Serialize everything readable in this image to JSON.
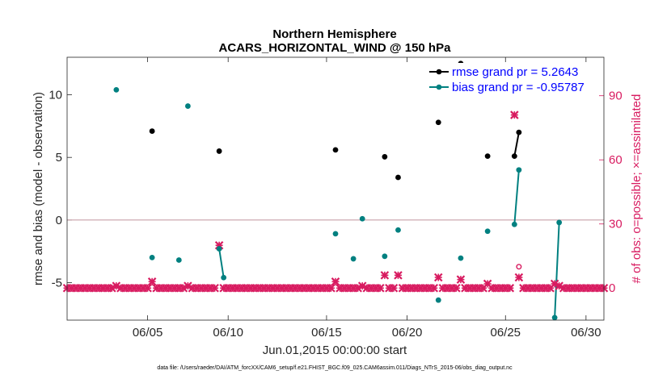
{
  "chart_data": {
    "type": "scatter",
    "title_line1": "Northern Hemisphere",
    "title_line2": "ACARS_HORIZONTAL_WIND @ 150 hPa",
    "xlabel": "Jun.01,2015 00:00:00 start",
    "ylabel_left": "rmse and bias (model - observation)",
    "ylabel_right": "# of obs: o=possible; ×=assimilated",
    "xlim": [
      1,
      31
    ],
    "ylim_left": [
      -8,
      13
    ],
    "ylim_right": [
      -15,
      108
    ],
    "x_ticks": [
      {
        "value": 5.5,
        "label": "06/05"
      },
      {
        "value": 10,
        "label": "06/10"
      },
      {
        "value": 15.5,
        "label": "06/15"
      },
      {
        "value": 20,
        "label": "06/20"
      },
      {
        "value": 25.5,
        "label": "06/25"
      },
      {
        "value": 30,
        "label": "06/30"
      }
    ],
    "y_ticks_left": [
      {
        "value": 10,
        "label": "10"
      },
      {
        "value": 5,
        "label": "5"
      },
      {
        "value": 0,
        "label": "0"
      },
      {
        "value": -5,
        "label": "-5"
      }
    ],
    "y_ticks_right": [
      {
        "value": 90,
        "label": "90"
      },
      {
        "value": 60,
        "label": "60"
      },
      {
        "value": 30,
        "label": "30"
      },
      {
        "value": 0,
        "label": "0"
      }
    ],
    "zero_line": 0,
    "colors": {
      "rmse": "#000000",
      "bias": "#008080",
      "obs": "#d81b60",
      "zero": "#c8a0a8",
      "legend_text": "#0000ff"
    },
    "series": [
      {
        "name": "rmse grand pr = 5.2643",
        "axis": "left",
        "marker": "dot",
        "points": [
          [
            5.75,
            7.1
          ],
          [
            9.5,
            5.5
          ],
          [
            16.0,
            5.6
          ],
          [
            18.75,
            5.05
          ],
          [
            19.5,
            3.4
          ],
          [
            21.75,
            7.8
          ],
          [
            23.0,
            12.5
          ],
          [
            24.5,
            5.1
          ],
          [
            26.0,
            5.1
          ],
          [
            26.25,
            7.0
          ]
        ],
        "segments": [
          [
            [
              26.0,
              5.1
            ],
            [
              26.25,
              7.0
            ]
          ]
        ]
      },
      {
        "name": "bias grand pr = -0.95787",
        "axis": "left",
        "marker": "dot",
        "points": [
          [
            3.75,
            10.4
          ],
          [
            5.75,
            -3.0
          ],
          [
            7.25,
            -3.2
          ],
          [
            7.75,
            9.1
          ],
          [
            9.5,
            -2.3
          ],
          [
            9.75,
            -4.6
          ],
          [
            16.0,
            -1.1
          ],
          [
            17.0,
            -3.1
          ],
          [
            17.5,
            0.1
          ],
          [
            18.75,
            -2.9
          ],
          [
            19.5,
            -0.8
          ],
          [
            21.75,
            -6.4
          ],
          [
            23.0,
            -3.05
          ],
          [
            24.5,
            -0.9
          ],
          [
            26.0,
            -0.35
          ],
          [
            26.25,
            4.0
          ],
          [
            28.25,
            -7.8
          ],
          [
            28.5,
            -0.2
          ]
        ],
        "segments": [
          [
            [
              9.5,
              -2.3
            ],
            [
              9.75,
              -4.6
            ]
          ],
          [
            [
              26.0,
              -0.35
            ],
            [
              26.25,
              4.0
            ]
          ],
          [
            [
              28.25,
              -7.8
            ],
            [
              28.5,
              -0.2
            ]
          ]
        ]
      },
      {
        "name": "obs assimilated",
        "axis": "right",
        "marker": "x",
        "baseline_value": 0,
        "baseline_range": [
          1,
          31
        ],
        "baseline_step": 0.25,
        "raised_points": [
          [
            3.75,
            1
          ],
          [
            5.75,
            3
          ],
          [
            7.75,
            1
          ],
          [
            9.5,
            20
          ],
          [
            16.0,
            3
          ],
          [
            17.5,
            1
          ],
          [
            18.75,
            6
          ],
          [
            19.5,
            6
          ],
          [
            21.75,
            5
          ],
          [
            23.0,
            4
          ],
          [
            24.5,
            2
          ],
          [
            26.0,
            81
          ],
          [
            26.25,
            5
          ],
          [
            28.25,
            2
          ],
          [
            28.5,
            1
          ]
        ]
      },
      {
        "name": "obs possible",
        "axis": "right",
        "marker": "o",
        "points": [
          [
            26.25,
            10
          ]
        ]
      }
    ],
    "legend": [
      {
        "label": "rmse grand pr = 5.2643",
        "series": 0
      },
      {
        "label": "bias grand pr = -0.95787",
        "series": 1
      }
    ],
    "legend_position": "top-right",
    "footnote": "data file: /Users/raeder/DAI/ATM_forcXX/CAM6_setup/f.e21.FHIST_BGC.f09_025.CAM6assim.011/Diags_NTrS_2015-06/obs_diag_output.nc"
  }
}
